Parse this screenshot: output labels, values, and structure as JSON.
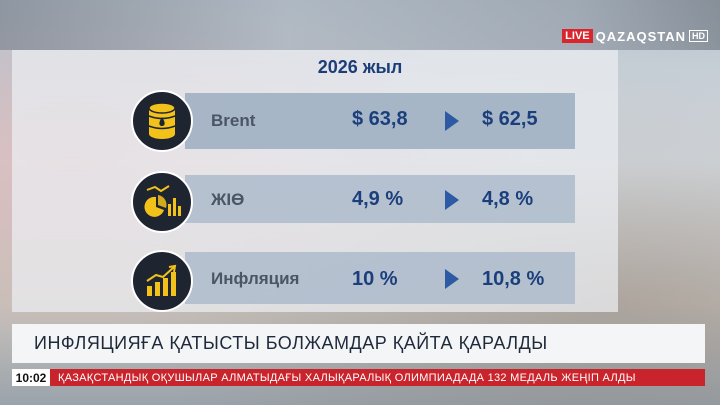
{
  "channel": {
    "live": "LIVE",
    "name": "QAZAQSTAN",
    "hd": "HD"
  },
  "infographic": {
    "title": "2026 жыл",
    "rows": [
      {
        "label": "Brent",
        "from": "$ 63,8",
        "to": "$ 62,5",
        "icon": "oil-barrel-icon"
      },
      {
        "label": "ЖІӨ",
        "from": "4,9 %",
        "to": "4,8 %",
        "icon": "gdp-chart-icon"
      },
      {
        "label": "Инфляция",
        "from": "10 %",
        "to": "10,8 %",
        "icon": "growth-chart-icon"
      }
    ]
  },
  "headline": "ИНФЛЯЦИЯҒА ҚАТЫСТЫ БОЛЖАМДАР ҚАЙТА ҚАРАЛДЫ",
  "ticker": {
    "time": "10:02",
    "text": "ҚАЗАҚСТАНДЫҚ ОҚУШЫЛАР АЛМАТЫДАҒЫ ХАЛЫҚАРАЛЫҚ ОЛИМПИАДАДА 132 МЕДАЛЬ ЖЕҢІП АЛДЫ"
  },
  "colors": {
    "accent": "#1b3f7c",
    "ticker": "#c9242c",
    "live": "#d9262c"
  }
}
